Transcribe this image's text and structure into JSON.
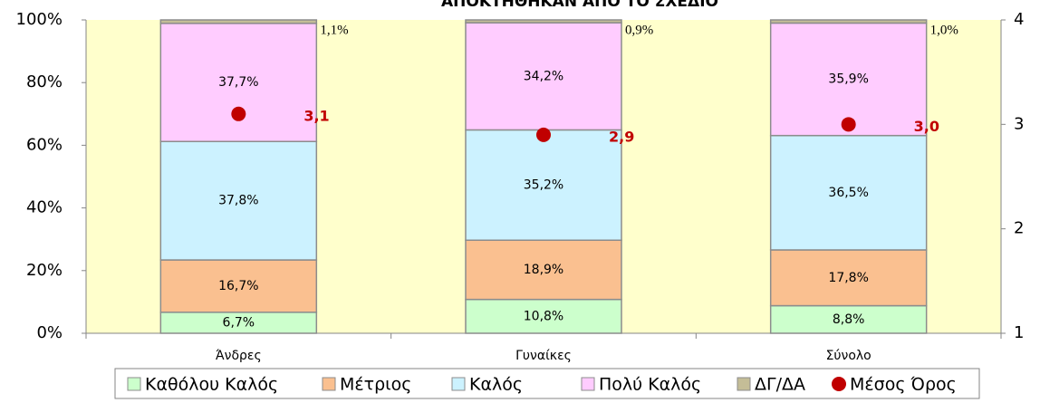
{
  "chart_data": {
    "type": "bar",
    "stacked": true,
    "title": "ΑΠΟΚΤΗΘΗΚΑΝ ΑΠΟ ΤΟ ΣΧΕΔΙΟ",
    "categories": [
      "Άνδρες",
      "Γυναίκες",
      "Σύνολο"
    ],
    "series": [
      {
        "name": "Καθόλου Καλός",
        "color": "#ccffcc",
        "values": [
          6.7,
          10.8,
          8.8
        ],
        "value_labels": [
          "6,7%",
          "10,8%",
          "8,8%"
        ]
      },
      {
        "name": "Μέτριος",
        "color": "#fac090",
        "values": [
          16.7,
          18.9,
          17.8
        ],
        "value_labels": [
          "16,7%",
          "18,9%",
          "17,8%"
        ]
      },
      {
        "name": "Καλός",
        "color": "#ccf2ff",
        "values": [
          37.8,
          35.2,
          36.5
        ],
        "value_labels": [
          "37,8%",
          "35,2%",
          "36,5%"
        ]
      },
      {
        "name": "Πολύ Καλός",
        "color": "#ffccff",
        "values": [
          37.7,
          34.2,
          35.9
        ],
        "value_labels": [
          "37,7%",
          "34,2%",
          "35,9%"
        ]
      },
      {
        "name": "ΔΓ/ΔΑ",
        "color": "#c4bd97",
        "values": [
          1.1,
          0.9,
          1.0
        ],
        "value_labels": [
          "1,1%",
          "0,9%",
          "1,0%"
        ]
      },
      {
        "name": "Μέσος Όρος",
        "type": "scatter",
        "axis": "y2",
        "color": "#c00000",
        "values": [
          3.1,
          2.9,
          3.0
        ],
        "value_labels": [
          "3,1",
          "2,9",
          "3,0"
        ]
      }
    ],
    "ylim": [
      0,
      100
    ],
    "yticks": [
      {
        "value": 0,
        "label": "0%"
      },
      {
        "value": 20,
        "label": "20%"
      },
      {
        "value": 40,
        "label": "40%"
      },
      {
        "value": 60,
        "label": "60%"
      },
      {
        "value": 80,
        "label": "80%"
      },
      {
        "value": 100,
        "label": "100%"
      }
    ],
    "y2lim": [
      1,
      4
    ],
    "y2ticks": [
      1,
      2,
      3,
      4
    ],
    "plot_background": "#ffffcc",
    "legend": "bottom"
  }
}
